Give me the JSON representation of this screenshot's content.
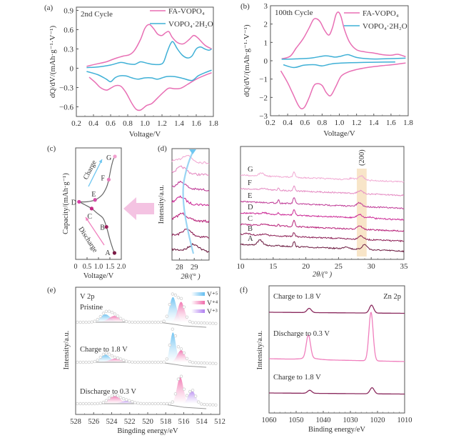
{
  "chart_data": [
    {
      "panel": "(a)",
      "type": "line",
      "title": "2nd Cycle",
      "xlabel": "Voltage/V",
      "ylabel": "dQ/dV/(mAh·g⁻¹·V⁻¹)",
      "xlim": [
        0.2,
        1.8
      ],
      "ylim": [
        -0.75,
        0.95
      ],
      "xticks": [
        0.2,
        0.4,
        0.6,
        0.8,
        1.0,
        1.2,
        1.4,
        1.6,
        1.8
      ],
      "xtick_labels": [
        "0.2",
        "0.4",
        "0.6",
        "0.8",
        "1.0",
        "1.2",
        "1.4",
        "1.6",
        "1.8"
      ],
      "yticks": [
        -0.6,
        -0.3,
        0,
        0.3,
        0.6,
        0.9
      ],
      "ytick_labels": [
        "−0.6",
        "−0.3",
        "0",
        "0.3",
        "0.6",
        "0.9"
      ],
      "legend": {
        "placement": "top-right",
        "entries": [
          "FA-VOPO₄",
          "VOPO₄·2H₂O"
        ]
      },
      "series": [
        {
          "name": "FA-VOPO₄",
          "color": "#e86fb4",
          "segment": "charge",
          "x": [
            0.32,
            0.45,
            0.55,
            0.65,
            0.75,
            0.82,
            0.88,
            0.95,
            1.0,
            1.05,
            1.1,
            1.15,
            1.2,
            1.24,
            1.28,
            1.32,
            1.38,
            1.45,
            1.52,
            1.57,
            1.62,
            1.7,
            1.78
          ],
          "y": [
            0.03,
            0.07,
            0.1,
            0.15,
            0.19,
            0.21,
            0.28,
            0.45,
            0.62,
            0.68,
            0.62,
            0.53,
            0.51,
            0.55,
            0.57,
            0.48,
            0.4,
            0.38,
            0.45,
            0.51,
            0.47,
            0.36,
            0.3
          ]
        },
        {
          "name": "FA-VOPO₄",
          "color": "#e86fb4",
          "segment": "discharge",
          "x": [
            1.78,
            1.7,
            1.6,
            1.5,
            1.42,
            1.35,
            1.28,
            1.22,
            1.15,
            1.08,
            1.02,
            0.95,
            0.9,
            0.85,
            0.78,
            0.72,
            0.66,
            0.6,
            0.55,
            0.48,
            0.42,
            0.35
          ],
          "y": [
            -0.07,
            -0.11,
            -0.17,
            -0.25,
            -0.31,
            -0.32,
            -0.31,
            -0.37,
            -0.46,
            -0.55,
            -0.58,
            -0.65,
            -0.64,
            -0.55,
            -0.38,
            -0.28,
            -0.27,
            -0.31,
            -0.34,
            -0.3,
            -0.22,
            -0.14
          ]
        },
        {
          "name": "VOPO₄·2H₂O",
          "color": "#3fb0d6",
          "segment": "charge",
          "x": [
            0.32,
            0.45,
            0.6,
            0.72,
            0.8,
            0.88,
            0.95,
            1.02,
            1.1,
            1.18,
            1.22,
            1.26,
            1.3,
            1.33,
            1.38,
            1.44,
            1.5,
            1.55,
            1.6,
            1.65,
            1.7,
            1.75,
            1.78
          ],
          "y": [
            0.01,
            0.02,
            0.05,
            0.09,
            0.07,
            0.06,
            0.1,
            0.08,
            0.06,
            0.06,
            0.1,
            0.25,
            0.38,
            0.41,
            0.3,
            0.2,
            0.16,
            0.19,
            0.3,
            0.33,
            0.3,
            0.28,
            0.3
          ]
        },
        {
          "name": "VOPO₄·2H₂O",
          "color": "#3fb0d6",
          "segment": "discharge",
          "x": [
            1.78,
            1.7,
            1.62,
            1.55,
            1.45,
            1.35,
            1.25,
            1.15,
            1.08,
            1.0,
            0.92,
            0.85,
            0.78,
            0.7,
            0.65,
            0.6,
            0.55,
            0.45,
            0.32
          ],
          "y": [
            -0.03,
            -0.07,
            -0.12,
            -0.19,
            -0.16,
            -0.13,
            -0.13,
            -0.17,
            -0.15,
            -0.15,
            -0.17,
            -0.15,
            -0.12,
            -0.12,
            -0.15,
            -0.21,
            -0.17,
            -0.1,
            -0.05
          ]
        }
      ]
    },
    {
      "panel": "(b)",
      "type": "line",
      "title": "100th Cycle",
      "xlabel": "Voltage/V",
      "ylabel": "dQ/dV/(mAh·g⁻¹·V⁻¹)",
      "xlim": [
        0.2,
        1.8
      ],
      "ylim": [
        -3,
        3
      ],
      "xticks": [
        0.2,
        0.4,
        0.6,
        0.8,
        1.0,
        1.2,
        1.4,
        1.6,
        1.8
      ],
      "xtick_labels": [
        "0.2",
        "0.4",
        "0.6",
        "0.8",
        "1.0",
        "1.2",
        "1.4",
        "1.6",
        "1.8"
      ],
      "yticks": [
        -3,
        -2,
        -1,
        0,
        1,
        2,
        3
      ],
      "ytick_labels": [
        "−3",
        "−2",
        "−1",
        "0",
        "1",
        "2",
        "3"
      ],
      "legend": {
        "placement": "top-right",
        "entries": [
          "FA-VOPO₄",
          "VOPO₄·2H₂O"
        ]
      },
      "series": [
        {
          "name": "FA-VOPO₄",
          "color": "#e86fb4",
          "segment": "charge",
          "x": [
            0.33,
            0.43,
            0.5,
            0.58,
            0.65,
            0.7,
            0.74,
            0.78,
            0.83,
            0.88,
            0.92,
            0.96,
            0.99,
            1.02,
            1.06,
            1.12,
            1.2,
            1.3,
            1.4,
            1.5,
            1.6,
            1.68,
            1.77
          ],
          "y": [
            0.1,
            0.25,
            0.7,
            1.2,
            1.8,
            2.25,
            2.28,
            2.1,
            1.65,
            1.4,
            1.8,
            2.5,
            2.65,
            2.4,
            1.7,
            1.0,
            0.6,
            0.48,
            0.42,
            0.33,
            0.3,
            0.35,
            0.22
          ]
        },
        {
          "name": "FA-VOPO₄",
          "color": "#e86fb4",
          "segment": "discharge",
          "x": [
            1.77,
            1.65,
            1.5,
            1.35,
            1.2,
            1.1,
            1.02,
            0.96,
            0.9,
            0.85,
            0.8,
            0.74,
            0.7,
            0.65,
            0.6,
            0.56,
            0.52,
            0.46,
            0.4,
            0.32
          ],
          "y": [
            -0.12,
            -0.2,
            -0.27,
            -0.35,
            -0.48,
            -0.62,
            -0.85,
            -1.4,
            -1.9,
            -1.75,
            -1.35,
            -1.25,
            -1.4,
            -2.0,
            -2.5,
            -2.62,
            -2.4,
            -1.8,
            -1.2,
            -0.55
          ]
        },
        {
          "name": "VOPO₄·2H₂O",
          "color": "#3fb0d6",
          "segment": "charge",
          "x": [
            0.33,
            0.5,
            0.68,
            0.84,
            0.95,
            1.02,
            1.1,
            1.2,
            1.35,
            1.5,
            1.65,
            1.77
          ],
          "y": [
            0.08,
            0.1,
            0.15,
            0.27,
            0.2,
            0.25,
            0.33,
            0.18,
            0.1,
            0.1,
            0.12,
            0.14
          ]
        },
        {
          "name": "VOPO₄·2H₂O",
          "color": "#3fb0d6",
          "segment": "discharge",
          "x": [
            1.65,
            1.4,
            1.2,
            1.05,
            0.95,
            0.88,
            0.8,
            0.72,
            0.65,
            0.58,
            0.47,
            0.35
          ],
          "y": [
            -0.07,
            -0.08,
            -0.1,
            -0.12,
            -0.15,
            -0.2,
            -0.28,
            -0.22,
            -0.22,
            -0.25,
            -0.37,
            -0.22
          ]
        }
      ]
    },
    {
      "panel": "(c)",
      "type": "line",
      "xlabel": "Voltage/V",
      "ylabel": "Capacity/(mAh·g⁻¹)",
      "xlim": [
        0,
        2.0
      ],
      "xticks": [
        0,
        0.5,
        1.0,
        1.5,
        2.0
      ],
      "xtick_labels": [
        "0",
        "0.5",
        "1.0",
        "1.5",
        "2.0"
      ],
      "curve": {
        "discharge_v": [
          1.7,
          1.62,
          1.5,
          1.35,
          1.2,
          0.95,
          0.7,
          0.4,
          0.15
        ],
        "discharge_cap": [
          0.0,
          0.05,
          0.14,
          0.27,
          0.36,
          0.41,
          0.46,
          0.5,
          0.53
        ],
        "charge_v": [
          0.15,
          0.5,
          0.85,
          1.15,
          1.35,
          1.45,
          1.55,
          1.65,
          1.72
        ],
        "charge_cap": [
          0.53,
          0.53,
          0.55,
          0.6,
          0.68,
          0.76,
          0.88,
          0.97,
          1.0
        ]
      },
      "points": [
        {
          "label": "A",
          "v": 1.7,
          "cap": 0.0,
          "color": "#7a1a45"
        },
        {
          "label": "B",
          "v": 1.35,
          "cap": 0.27,
          "color": "#9b1e5a"
        },
        {
          "label": "C",
          "v": 0.7,
          "cap": 0.46,
          "color": "#c42a84"
        },
        {
          "label": "D",
          "v": 0.15,
          "cap": 0.53,
          "color": "#d93fa6"
        },
        {
          "label": "E",
          "v": 0.85,
          "cap": 0.55,
          "color": "#d34aa5"
        },
        {
          "label": "F",
          "v": 1.45,
          "cap": 0.76,
          "color": "#e77cbc"
        },
        {
          "label": "G",
          "v": 1.72,
          "cap": 1.0,
          "color": "#f2a0cf"
        }
      ],
      "annotations": [
        "Charge",
        "Discharge"
      ]
    },
    {
      "panel": "(d)",
      "type": "line",
      "xlabel": "2θ/(° )",
      "ylabel": "Intensity/a.u.",
      "xlim": [
        27.5,
        30.0
      ],
      "xticks": [
        28,
        29
      ],
      "xtick_labels": [
        "28",
        "29"
      ],
      "series_labels": [
        "A",
        "B",
        "C",
        "D",
        "E",
        "F",
        "G"
      ],
      "peak_positions": [
        29.0,
        28.5,
        28.2,
        28.1,
        28.1,
        28.15,
        28.5
      ]
    },
    {
      "panel": "(d-full)",
      "type": "line",
      "xlabel": "2θ/(° )",
      "xlim": [
        10,
        35
      ],
      "xticks": [
        10,
        15,
        20,
        25,
        30,
        35
      ],
      "xtick_labels": [
        "10",
        "15",
        "20",
        "25",
        "30",
        "35"
      ],
      "highlight": {
        "label": "(200)",
        "range": [
          27.8,
          29.3
        ],
        "color": "#f6dcb5"
      },
      "series": [
        {
          "name": "A",
          "color": "#6b1a40"
        },
        {
          "name": "B",
          "color": "#8c1f55"
        },
        {
          "name": "C",
          "color": "#b8237a"
        },
        {
          "name": "D",
          "color": "#cc2a96"
        },
        {
          "name": "E",
          "color": "#bf3a96"
        },
        {
          "name": "F",
          "color": "#e58cc3"
        },
        {
          "name": "G",
          "color": "#f1a9d3"
        }
      ],
      "peaks": [
        13.2,
        15.8,
        18.2,
        28.5
      ]
    },
    {
      "panel": "(e)",
      "type": "area",
      "title": "V 2p",
      "xlabel": "Bingding energy/eV",
      "ylabel": "Intensity/a.u.",
      "xlim": [
        528,
        512
      ],
      "xticks": [
        528,
        526,
        524,
        522,
        520,
        518,
        516,
        514,
        512
      ],
      "xtick_labels": [
        "528",
        "526",
        "524",
        "522",
        "520",
        "518",
        "516",
        "514",
        "512"
      ],
      "legend": {
        "placement": "top-right",
        "entries": [
          "V⁺⁵",
          "V⁺⁴",
          "V⁺³"
        ],
        "colors": [
          "#6ec3f0",
          "#f06aaa",
          "#b78af0"
        ]
      },
      "spectra": [
        {
          "label": "Pristine",
          "components": [
            {
              "state": "V⁺⁵",
              "center": 517.2,
              "amp": 0.8,
              "width": 0.55
            },
            {
              "state": "V⁺⁴",
              "center": 516.3,
              "amp": 0.65,
              "width": 0.55
            },
            {
              "state": "V⁺⁵",
              "center": 524.7,
              "amp": 0.25,
              "width": 0.8
            },
            {
              "state": "V⁺⁴",
              "center": 523.7,
              "amp": 0.2,
              "width": 0.9
            }
          ]
        },
        {
          "label": "Charge to 1.8 V",
          "components": [
            {
              "state": "V⁺⁵",
              "center": 517.2,
              "amp": 0.95,
              "width": 0.45
            },
            {
              "state": "V⁺⁴",
              "center": 516.3,
              "amp": 0.38,
              "width": 0.6
            },
            {
              "state": "V⁺⁵",
              "center": 524.7,
              "amp": 0.24,
              "width": 0.75
            },
            {
              "state": "V⁺⁴",
              "center": 523.5,
              "amp": 0.12,
              "width": 1.0
            }
          ]
        },
        {
          "label": "Discharge to 0.3 V",
          "components": [
            {
              "state": "V⁺⁴",
              "center": 516.4,
              "amp": 0.85,
              "width": 0.5
            },
            {
              "state": "V⁺³",
              "center": 515.1,
              "amp": 0.42,
              "width": 0.55
            },
            {
              "state": "V⁺⁴",
              "center": 523.7,
              "amp": 0.25,
              "width": 0.9
            },
            {
              "state": "V⁺³",
              "center": 522.3,
              "amp": 0.09,
              "width": 0.9
            }
          ]
        }
      ]
    },
    {
      "panel": "(f)",
      "type": "line",
      "title": "Zn 2p",
      "xlabel": "Binding energy/eV",
      "ylabel": "Intensity/a.u.",
      "xlim": [
        1060,
        1010
      ],
      "xticks": [
        1060,
        1050,
        1040,
        1030,
        1020,
        1010
      ],
      "xtick_labels": [
        "1060",
        "1050",
        "1040",
        "1030",
        "1020",
        "1010"
      ],
      "series": [
        {
          "name": "Charge to 1.8 V",
          "position": "top",
          "color": "#8a2a5e",
          "peaks": [
            {
              "center": 1045.2,
              "amp": 0.07
            },
            {
              "center": 1022.2,
              "amp": 0.13
            }
          ]
        },
        {
          "name": "Discharge to 0.3 V",
          "position": "middle",
          "color": "#f07fbd",
          "peaks": [
            {
              "center": 1045.5,
              "amp": 0.38
            },
            {
              "center": 1022.4,
              "amp": 0.8
            }
          ]
        },
        {
          "name": "Charge to 1.8 V",
          "position": "bottom",
          "color": "#8a2a5e",
          "peaks": [
            {
              "center": 1045.0,
              "amp": 0.05
            },
            {
              "center": 1022.0,
              "amp": 0.1
            }
          ]
        }
      ]
    }
  ],
  "panel_labels": [
    "(a)",
    "(b)",
    "(c)",
    "(d)",
    "(e)",
    "(f)"
  ]
}
